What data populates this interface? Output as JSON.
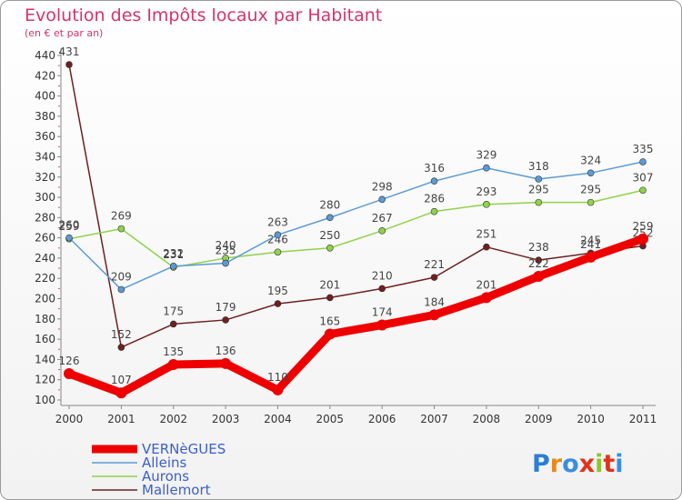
{
  "chart_data": {
    "type": "line",
    "title": "Evolution des Impôts locaux par Habitant",
    "subtitle": "(en € et par an)",
    "xlabel": "",
    "ylabel": "",
    "categories": [
      "2000",
      "2001",
      "2002",
      "2003",
      "2004",
      "2005",
      "2006",
      "2007",
      "2008",
      "2009",
      "2010",
      "2011"
    ],
    "ylim": [
      100,
      440
    ],
    "yticks": [
      100,
      120,
      140,
      160,
      180,
      200,
      220,
      240,
      260,
      280,
      300,
      320,
      340,
      360,
      380,
      400,
      420,
      440
    ],
    "grid": false,
    "legend_position": "bottom-left",
    "series": [
      {
        "name": "VERNèGUES",
        "color": "#ee0000",
        "values": [
          126,
          107,
          135,
          136,
          110,
          165,
          174,
          184,
          201,
          222,
          241,
          259
        ]
      },
      {
        "name": "Alleins",
        "color": "#5b9bd5",
        "values": [
          260,
          209,
          232,
          235,
          263,
          280,
          298,
          316,
          329,
          318,
          324,
          335
        ]
      },
      {
        "name": "Aurons",
        "color": "#8fd24c",
        "values": [
          259,
          269,
          231,
          240,
          246,
          250,
          267,
          286,
          293,
          295,
          295,
          307
        ]
      },
      {
        "name": "Mallemort",
        "color": "#6e1f1f",
        "values": [
          431,
          152,
          175,
          179,
          195,
          201,
          210,
          221,
          251,
          238,
          245,
          252
        ]
      }
    ]
  },
  "logo": {
    "text": "Proxiti"
  },
  "colors": {
    "title": "#d6336c",
    "legend_text": "#3a5fcd"
  }
}
